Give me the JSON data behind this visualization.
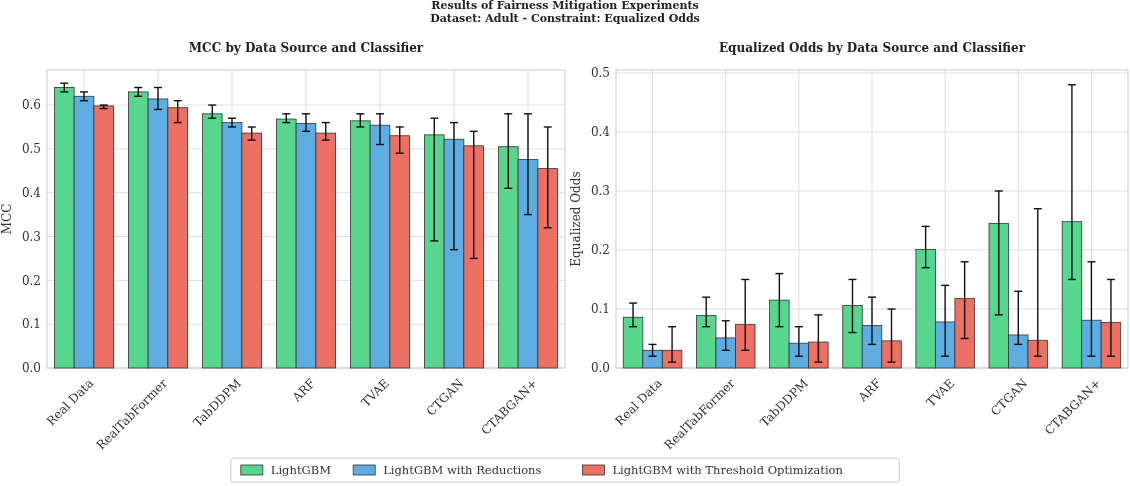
{
  "chart_data": [
    {
      "type": "bar",
      "title": "MCC by Data Source and Classifier",
      "ylabel": "MCC",
      "annotations": [
        "Results of Fairness Mitigation Experiments",
        "Dataset: Adult - Constraint: Equalized Odds"
      ],
      "categories": [
        "Real Data",
        "RealTabFormer",
        "TabDDPM",
        "ARF",
        "TVAE",
        "CTGAN",
        "CTABGAN+"
      ],
      "series": [
        {
          "name": "LightGBM",
          "color": "#58d68d",
          "values": [
            0.64,
            0.63,
            0.58,
            0.568,
            0.564,
            0.532,
            0.505
          ],
          "errors": [
            [
              0.63,
              0.65
            ],
            [
              0.62,
              0.64
            ],
            [
              0.57,
              0.6
            ],
            [
              0.56,
              0.58
            ],
            [
              0.55,
              0.58
            ],
            [
              0.29,
              0.57
            ],
            [
              0.41,
              0.58
            ]
          ]
        },
        {
          "name": "LightGBM with Reductions",
          "color": "#5dade2",
          "values": [
            0.62,
            0.614,
            0.56,
            0.558,
            0.554,
            0.522,
            0.476
          ],
          "errors": [
            [
              0.61,
              0.63
            ],
            [
              0.59,
              0.64
            ],
            [
              0.55,
              0.57
            ],
            [
              0.54,
              0.58
            ],
            [
              0.51,
              0.58
            ],
            [
              0.27,
              0.56
            ],
            [
              0.35,
              0.58
            ]
          ]
        },
        {
          "name": "LightGBM with Threshold Optimization",
          "color": "#ec7063",
          "values": [
            0.598,
            0.594,
            0.536,
            0.536,
            0.53,
            0.507,
            0.455
          ],
          "errors": [
            [
              0.592,
              0.6
            ],
            [
              0.56,
              0.61
            ],
            [
              0.52,
              0.55
            ],
            [
              0.52,
              0.56
            ],
            [
              0.49,
              0.55
            ],
            [
              0.25,
              0.54
            ],
            [
              0.32,
              0.55
            ]
          ]
        }
      ],
      "ylim": [
        0,
        0.68
      ],
      "yticks": [
        {
          "value": 0,
          "label": "0.0"
        },
        0.1,
        0.2,
        0.3,
        0.4,
        0.5,
        0.6
      ],
      "grid": true,
      "legend": "bottom"
    },
    {
      "type": "bar",
      "title": "Equalized Odds by Data Source and Classifier",
      "ylabel": "Equalized Odds",
      "categories": [
        "Real Data",
        "RealTabFormer",
        "TabDDPM",
        "ARF",
        "TVAE",
        "CTGAN",
        "CTABGAN+"
      ],
      "series": [
        {
          "name": "LightGBM",
          "color": "#58d68d",
          "values": [
            0.086,
            0.089,
            0.115,
            0.106,
            0.201,
            0.245,
            0.248
          ],
          "errors": [
            [
              0.07,
              0.11
            ],
            [
              0.07,
              0.12
            ],
            [
              0.07,
              0.16
            ],
            [
              0.06,
              0.15
            ],
            [
              0.17,
              0.24
            ],
            [
              0.09,
              0.3
            ],
            [
              0.15,
              0.48
            ]
          ]
        },
        {
          "name": "LightGBM with Reductions",
          "color": "#5dade2",
          "values": [
            0.03,
            0.051,
            0.042,
            0.072,
            0.078,
            0.056,
            0.081
          ],
          "errors": [
            [
              0.02,
              0.04
            ],
            [
              0.03,
              0.08
            ],
            [
              0.02,
              0.07
            ],
            [
              0.04,
              0.12
            ],
            [
              0.02,
              0.14
            ],
            [
              0.04,
              0.13
            ],
            [
              0.02,
              0.18
            ]
          ]
        },
        {
          "name": "LightGBM with Threshold Optimization",
          "color": "#ec7063",
          "values": [
            0.03,
            0.074,
            0.044,
            0.046,
            0.118,
            0.047,
            0.077
          ],
          "errors": [
            [
              0.01,
              0.07
            ],
            [
              0.03,
              0.15
            ],
            [
              0.01,
              0.09
            ],
            [
              0.01,
              0.1
            ],
            [
              0.05,
              0.18
            ],
            [
              0.02,
              0.27
            ],
            [
              0.02,
              0.15
            ]
          ]
        }
      ],
      "ylim": [
        0,
        0.505
      ],
      "yticks": [
        {
          "value": 0,
          "label": "0.0"
        },
        0.1,
        0.2,
        0.3,
        0.4,
        0.5
      ],
      "grid": true
    }
  ]
}
